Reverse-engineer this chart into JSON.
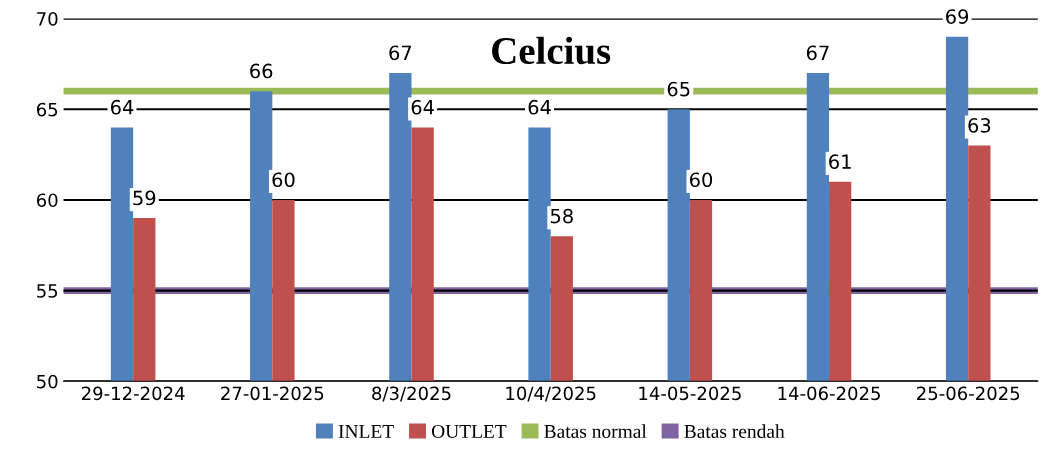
{
  "chart_data": {
    "type": "bar",
    "title": "Celcius",
    "categories": [
      "29-12-2024",
      "27-01-2025",
      "8/3/2025",
      "10/4/2025",
      "14-05-2025",
      "14-06-2025",
      "25-06-2025"
    ],
    "series": [
      {
        "name": "INLET",
        "color": "#4f81bd",
        "values": [
          64,
          66,
          67,
          64,
          65,
          67,
          69
        ]
      },
      {
        "name": "OUTLET",
        "color": "#c0504d",
        "values": [
          59,
          60,
          64,
          58,
          60,
          61,
          63
        ]
      }
    ],
    "ref_lines": [
      {
        "axis": "y",
        "value": 66,
        "label": "Batas normal",
        "color": "#9bbb59"
      },
      {
        "axis": "y",
        "value": 55,
        "label": "Batas rendah",
        "color": "#8064a2"
      }
    ],
    "ylim": [
      50,
      70
    ],
    "yticks": [
      50,
      55,
      60,
      65,
      70
    ],
    "grid": "y",
    "data_labels": true,
    "legend": "bottom"
  }
}
